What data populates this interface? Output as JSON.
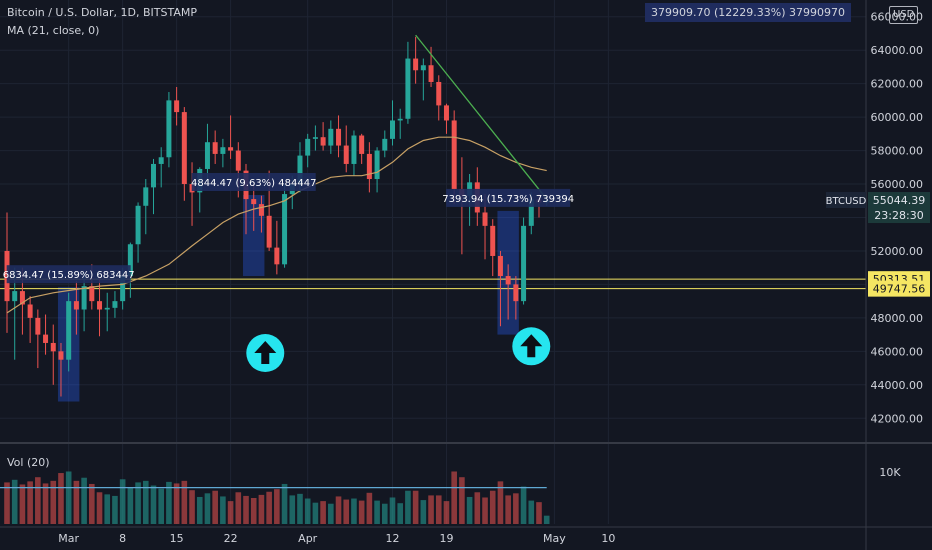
{
  "header": {
    "title": "Bitcoin / U.S. Dollar, 1D, BITSTAMP",
    "indicator": "MA (21, close, 0)",
    "stats_box": "379909.70 (12229.33%) 37990970"
  },
  "volume_panel": {
    "label": "Vol (20)",
    "tick": "10K"
  },
  "currency": "USD",
  "price_tag": {
    "symbol": "BTCUSD",
    "price": "55044.39",
    "countdown": "23:28:30"
  },
  "colors": {
    "background": "#131722",
    "up": "#26a69a",
    "down": "#ef5350",
    "ma": "#c8a165",
    "trendline": "#4caf50",
    "hline": "#f5e663",
    "measure_box": "#2962ff",
    "arrow": "#26e5ef"
  },
  "chart_data": {
    "type": "candlestick",
    "symbol": "BTCUSD",
    "exchange": "BITSTAMP",
    "interval": "1D",
    "ylim": [
      40700,
      67000
    ],
    "y_ticks": [
      42000,
      44000,
      46000,
      48000,
      50000,
      52000,
      54000,
      56000,
      58000,
      60000,
      62000,
      64000,
      66000
    ],
    "y_tick_labels": [
      "42000.00",
      "44000.00",
      "46000.00",
      "48000.00",
      "50000.00",
      "52000.00",
      "54000.00",
      "56000.00",
      "58000.00",
      "60000.00",
      "62000.00",
      "64000.00",
      "66000.00"
    ],
    "x_ticks": [
      {
        "day": 8,
        "label": "Mar"
      },
      {
        "day": 15,
        "label": "8"
      },
      {
        "day": 22,
        "label": "15"
      },
      {
        "day": 29,
        "label": "22"
      },
      {
        "day": 39,
        "label": "Apr"
      },
      {
        "day": 50,
        "label": "12"
      },
      {
        "day": 57,
        "label": "19"
      },
      {
        "day": 71,
        "label": "May"
      },
      {
        "day": 78,
        "label": "10"
      }
    ],
    "candles": [
      {
        "o": 52000,
        "h": 54300,
        "l": 47100,
        "c": 49000,
        "v": 8000
      },
      {
        "o": 49000,
        "h": 51000,
        "l": 45500,
        "c": 49600,
        "v": 8500
      },
      {
        "o": 49600,
        "h": 51000,
        "l": 47000,
        "c": 48800,
        "v": 7600
      },
      {
        "o": 48800,
        "h": 49300,
        "l": 46500,
        "c": 48000,
        "v": 8200
      },
      {
        "o": 48000,
        "h": 48500,
        "l": 45000,
        "c": 47000,
        "v": 9000
      },
      {
        "o": 47000,
        "h": 48200,
        "l": 45800,
        "c": 46500,
        "v": 7800
      },
      {
        "o": 46500,
        "h": 47600,
        "l": 44000,
        "c": 46000,
        "v": 8300
      },
      {
        "o": 46000,
        "h": 46500,
        "l": 43300,
        "c": 45500,
        "v": 9800
      },
      {
        "o": 45500,
        "h": 49500,
        "l": 44800,
        "c": 49000,
        "v": 10100
      },
      {
        "o": 49000,
        "h": 50200,
        "l": 47000,
        "c": 48500,
        "v": 8300
      },
      {
        "o": 48500,
        "h": 50700,
        "l": 47200,
        "c": 49900,
        "v": 8900
      },
      {
        "o": 49900,
        "h": 51200,
        "l": 48500,
        "c": 49000,
        "v": 7700
      },
      {
        "o": 49000,
        "h": 50500,
        "l": 46900,
        "c": 48500,
        "v": 6100
      },
      {
        "o": 48500,
        "h": 49500,
        "l": 47200,
        "c": 48600,
        "v": 5700
      },
      {
        "o": 48600,
        "h": 49600,
        "l": 48000,
        "c": 49000,
        "v": 5400
      },
      {
        "o": 49000,
        "h": 51000,
        "l": 48500,
        "c": 50500,
        "v": 8600
      },
      {
        "o": 50500,
        "h": 52500,
        "l": 49200,
        "c": 52400,
        "v": 7000
      },
      {
        "o": 52400,
        "h": 54900,
        "l": 51300,
        "c": 54700,
        "v": 8000
      },
      {
        "o": 54700,
        "h": 56300,
        "l": 53000,
        "c": 55800,
        "v": 8300
      },
      {
        "o": 55800,
        "h": 57500,
        "l": 54200,
        "c": 57200,
        "v": 7400
      },
      {
        "o": 57200,
        "h": 58200,
        "l": 55800,
        "c": 57600,
        "v": 6800
      },
      {
        "o": 57600,
        "h": 61500,
        "l": 57000,
        "c": 61000,
        "v": 8100
      },
      {
        "o": 61000,
        "h": 61800,
        "l": 59500,
        "c": 60300,
        "v": 7800
      },
      {
        "o": 60300,
        "h": 60600,
        "l": 55000,
        "c": 56000,
        "v": 8300
      },
      {
        "o": 56000,
        "h": 57300,
        "l": 53500,
        "c": 55500,
        "v": 6500
      },
      {
        "o": 55500,
        "h": 57000,
        "l": 54300,
        "c": 56900,
        "v": 5200
      },
      {
        "o": 56900,
        "h": 59600,
        "l": 56200,
        "c": 58500,
        "v": 5900
      },
      {
        "o": 58500,
        "h": 59200,
        "l": 57200,
        "c": 57800,
        "v": 6400
      },
      {
        "o": 57800,
        "h": 58700,
        "l": 57000,
        "c": 58200,
        "v": 5300
      },
      {
        "o": 58200,
        "h": 60100,
        "l": 57500,
        "c": 58000,
        "v": 4400
      },
      {
        "o": 58000,
        "h": 58500,
        "l": 55200,
        "c": 56800,
        "v": 6100
      },
      {
        "o": 56800,
        "h": 57200,
        "l": 53000,
        "c": 55100,
        "v": 5400
      },
      {
        "o": 55100,
        "h": 56000,
        "l": 53200,
        "c": 54800,
        "v": 5000
      },
      {
        "o": 54800,
        "h": 55300,
        "l": 53100,
        "c": 54100,
        "v": 5600
      },
      {
        "o": 54100,
        "h": 56800,
        "l": 52000,
        "c": 52200,
        "v": 6200
      },
      {
        "o": 52200,
        "h": 53800,
        "l": 50600,
        "c": 51200,
        "v": 6700
      },
      {
        "o": 51200,
        "h": 56000,
        "l": 51000,
        "c": 55400,
        "v": 7700
      },
      {
        "o": 55400,
        "h": 56500,
        "l": 54500,
        "c": 56000,
        "v": 5500
      },
      {
        "o": 56000,
        "h": 58500,
        "l": 55500,
        "c": 57700,
        "v": 5800
      },
      {
        "o": 57700,
        "h": 59000,
        "l": 57000,
        "c": 58700,
        "v": 4900
      },
      {
        "o": 58700,
        "h": 59500,
        "l": 58000,
        "c": 58800,
        "v": 4100
      },
      {
        "o": 58800,
        "h": 59700,
        "l": 58000,
        "c": 58300,
        "v": 4400
      },
      {
        "o": 58300,
        "h": 59800,
        "l": 57800,
        "c": 59300,
        "v": 3900
      },
      {
        "o": 59300,
        "h": 60100,
        "l": 57600,
        "c": 58300,
        "v": 5300
      },
      {
        "o": 58300,
        "h": 59500,
        "l": 56700,
        "c": 57200,
        "v": 4700
      },
      {
        "o": 57200,
        "h": 59200,
        "l": 56500,
        "c": 58900,
        "v": 4900
      },
      {
        "o": 58900,
        "h": 59000,
        "l": 57200,
        "c": 57800,
        "v": 4500
      },
      {
        "o": 57800,
        "h": 58500,
        "l": 55500,
        "c": 56300,
        "v": 6000
      },
      {
        "o": 56300,
        "h": 58200,
        "l": 55500,
        "c": 58000,
        "v": 4500
      },
      {
        "o": 58000,
        "h": 59200,
        "l": 57600,
        "c": 58700,
        "v": 3900
      },
      {
        "o": 58700,
        "h": 61000,
        "l": 58300,
        "c": 59800,
        "v": 5100
      },
      {
        "o": 59800,
        "h": 60500,
        "l": 58700,
        "c": 59900,
        "v": 4000
      },
      {
        "o": 59900,
        "h": 64500,
        "l": 59600,
        "c": 63500,
        "v": 6400
      },
      {
        "o": 63500,
        "h": 64800,
        "l": 62000,
        "c": 62800,
        "v": 6400
      },
      {
        "o": 62800,
        "h": 63500,
        "l": 61000,
        "c": 63100,
        "v": 4600
      },
      {
        "o": 63100,
        "h": 64200,
        "l": 61800,
        "c": 62100,
        "v": 5500
      },
      {
        "o": 62100,
        "h": 62500,
        "l": 59800,
        "c": 60700,
        "v": 5500
      },
      {
        "o": 60700,
        "h": 60800,
        "l": 59000,
        "c": 59800,
        "v": 4400
      },
      {
        "o": 59800,
        "h": 60400,
        "l": 54800,
        "c": 55700,
        "v": 10100
      },
      {
        "o": 55700,
        "h": 57600,
        "l": 51800,
        "c": 55300,
        "v": 9000
      },
      {
        "o": 55300,
        "h": 56600,
        "l": 53500,
        "c": 56100,
        "v": 5200
      },
      {
        "o": 56100,
        "h": 57000,
        "l": 53500,
        "c": 54300,
        "v": 6100
      },
      {
        "o": 54300,
        "h": 55400,
        "l": 51500,
        "c": 53500,
        "v": 5100
      },
      {
        "o": 53500,
        "h": 53900,
        "l": 50500,
        "c": 51700,
        "v": 6400
      },
      {
        "o": 51700,
        "h": 52000,
        "l": 47500,
        "c": 50500,
        "v": 8200
      },
      {
        "o": 50500,
        "h": 51200,
        "l": 47900,
        "c": 50000,
        "v": 5500
      },
      {
        "o": 50000,
        "h": 50500,
        "l": 47900,
        "c": 49000,
        "v": 5900
      },
      {
        "o": 49000,
        "h": 54000,
        "l": 48800,
        "c": 53500,
        "v": 7200
      },
      {
        "o": 53500,
        "h": 55500,
        "l": 53000,
        "c": 55100,
        "v": 4500
      },
      {
        "o": 55100,
        "h": 55400,
        "l": 54000,
        "c": 54900,
        "v": 4200
      },
      {
        "o": 54900,
        "h": 55300,
        "l": 54700,
        "c": 55044,
        "v": 1600
      }
    ],
    "ma": {
      "label": "MA (21, close, 0)",
      "points": [
        [
          0,
          48300
        ],
        [
          3,
          49200
        ],
        [
          6,
          49500
        ],
        [
          9,
          49700
        ],
        [
          12,
          49900
        ],
        [
          15,
          50000
        ],
        [
          18,
          50500
        ],
        [
          21,
          51200
        ],
        [
          24,
          52300
        ],
        [
          26,
          53000
        ],
        [
          28,
          53700
        ],
        [
          30,
          54200
        ],
        [
          32,
          54500
        ],
        [
          34,
          54700
        ],
        [
          36,
          55000
        ],
        [
          38,
          55600
        ],
        [
          40,
          56000
        ],
        [
          42,
          56400
        ],
        [
          44,
          56500
        ],
        [
          46,
          56500
        ],
        [
          48,
          56700
        ],
        [
          50,
          57300
        ],
        [
          52,
          58100
        ],
        [
          54,
          58600
        ],
        [
          56,
          58800
        ],
        [
          58,
          58800
        ],
        [
          60,
          58600
        ],
        [
          62,
          58200
        ],
        [
          64,
          57700
        ],
        [
          66,
          57300
        ],
        [
          68,
          57000
        ],
        [
          70,
          56800
        ]
      ]
    },
    "horizontal_lines": [
      {
        "price": 50313.51,
        "label": "50313.51"
      },
      {
        "price": 49747.56,
        "label": "49747.56"
      }
    ],
    "trendline": {
      "from": [
        53,
        64900
      ],
      "to": [
        70,
        55100
      ]
    },
    "measurements": [
      {
        "label": "6834.47 (15.89%) 683447",
        "start_day": 7,
        "end_day": 9,
        "from": 43000,
        "to": 49834
      },
      {
        "label": "4844.47 (9.63%) 484447",
        "start_day": 31,
        "end_day": 33,
        "from": 50500,
        "to": 55344
      },
      {
        "label": "7393.94 (15.73%) 739394",
        "start_day": 64,
        "end_day": 66,
        "from": 47000,
        "to": 54394
      }
    ],
    "arrows": [
      {
        "day": 33.5,
        "price": 45900,
        "direction": "up"
      },
      {
        "day": 68,
        "price": 46300,
        "direction": "up"
      }
    ],
    "volume": {
      "label": "Vol (20)",
      "ylim": [
        0,
        15000
      ],
      "ticks": [
        10000
      ],
      "tick_labels": [
        "10K"
      ],
      "ma_level": 7000
    }
  }
}
